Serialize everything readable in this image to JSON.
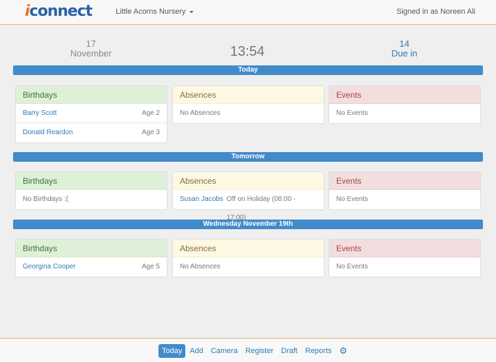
{
  "header": {
    "logo_prefix": "i",
    "logo_rest": "connect",
    "school": "Little Acorns Nursery",
    "signed_in": "Signed in as Noreen Ali"
  },
  "summary": {
    "day": "17",
    "month": "November",
    "time": "13:54",
    "due_count": "14",
    "due_label": "Due in"
  },
  "sections": [
    {
      "title": "Today",
      "birthdays": {
        "heading": "Birthdays",
        "rows": [
          {
            "name": "Barry Scott",
            "detail": "Age 2"
          },
          {
            "name": "Donald Reardon",
            "detail": "Age 3"
          }
        ]
      },
      "absences": {
        "heading": "Absences",
        "rows": [
          {
            "name": "",
            "detail": "No Absences"
          }
        ]
      },
      "events": {
        "heading": "Events",
        "rows": [
          {
            "name": "",
            "detail": "No Events"
          }
        ]
      }
    },
    {
      "title": "Tomorrow",
      "birthdays": {
        "heading": "Birthdays",
        "rows": [
          {
            "name": "",
            "detail": "No Birthdays :("
          }
        ]
      },
      "absences": {
        "heading": "Absences",
        "rows": [
          {
            "name": "Susan Jacobs",
            "detail": "Off on Holiday (08:00 - 17:00)"
          }
        ]
      },
      "events": {
        "heading": "Events",
        "rows": [
          {
            "name": "",
            "detail": "No Events"
          }
        ]
      }
    },
    {
      "title": "Wednesday November 19th",
      "birthdays": {
        "heading": "Birthdays",
        "rows": [
          {
            "name": "Georgina Cooper",
            "detail": "Age 5"
          }
        ]
      },
      "absences": {
        "heading": "Absences",
        "rows": [
          {
            "name": "",
            "detail": "No Absences"
          }
        ]
      },
      "events": {
        "heading": "Events",
        "rows": [
          {
            "name": "",
            "detail": "No Events"
          }
        ]
      }
    }
  ],
  "footer": {
    "nav": [
      "Today",
      "Add",
      "Camera",
      "Register",
      "Draft",
      "Reports"
    ],
    "active": "Today",
    "settings_icon": "gear-icon"
  },
  "colors": {
    "accent": "#428bca",
    "header_border": "#e3b57a"
  }
}
